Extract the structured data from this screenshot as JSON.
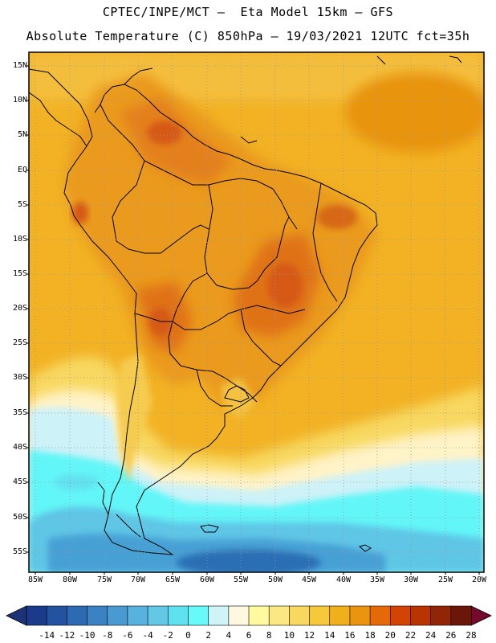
{
  "header": {
    "line1": "CPTEC/INPE/MCT —  Eta Model 15km — GFS",
    "line2": "Absolute Temperature (C) 850hPa — 19/03/2021 12UTC fct=35h"
  },
  "map": {
    "lat_labels": [
      "15N",
      "10N",
      "5N",
      "EQ",
      "5S",
      "10S",
      "15S",
      "20S",
      "25S",
      "30S",
      "35S",
      "40S",
      "45S",
      "50S",
      "55S"
    ],
    "lon_labels": [
      "85W",
      "80W",
      "75W",
      "70W",
      "65W",
      "60W",
      "55W",
      "50W",
      "45W",
      "40W",
      "35W",
      "30W",
      "25W",
      "20W"
    ]
  },
  "colorbar": {
    "labels": [
      "-14",
      "-12",
      "-10",
      "-8",
      "-6",
      "-4",
      "-2",
      "0",
      "2",
      "4",
      "6",
      "8",
      "10",
      "12",
      "14",
      "16",
      "18",
      "20",
      "22",
      "24",
      "26",
      "28"
    ],
    "colors": [
      "#1a3a8a",
      "#2252a0",
      "#2c6ab2",
      "#3a82c4",
      "#4a9ad2",
      "#58b2de",
      "#62c8e6",
      "#5ee2f0",
      "#66fafa",
      "#cef4f8",
      "#fff8e0",
      "#fffaa0",
      "#fbe882",
      "#f8d85e",
      "#f6c83c",
      "#f0b01a",
      "#ea9410",
      "#e46a08",
      "#d24404",
      "#b83402",
      "#902606",
      "#6a1608"
    ]
  }
}
